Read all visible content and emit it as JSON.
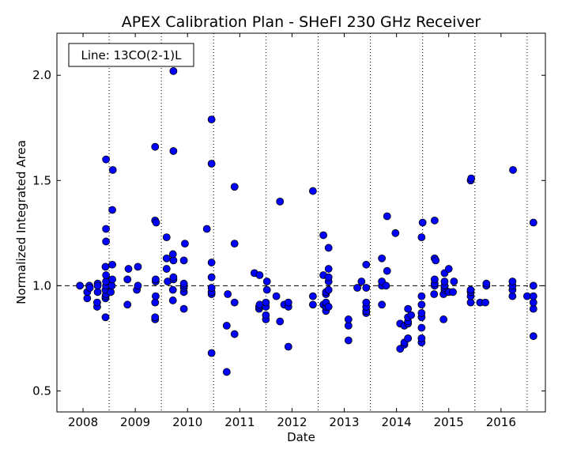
{
  "chart_data": {
    "type": "scatter",
    "title": "APEX Calibration Plan - SHeFI 230 GHz Receiver",
    "xlabel": "Date",
    "ylabel": "Normalized Integrated Area",
    "legend_text": "Line: 13CO(2-1)L",
    "legend_position": "top-left",
    "xlim": [
      2007.5,
      2016.85
    ],
    "ylim": [
      0.4,
      2.2
    ],
    "x_ticks": [
      2008,
      2009,
      2010,
      2011,
      2012,
      2013,
      2014,
      2015,
      2016
    ],
    "x_tick_labels": [
      "2008",
      "2009",
      "2010",
      "2011",
      "2012",
      "2013",
      "2014",
      "2015",
      "2016"
    ],
    "y_ticks": [
      0.5,
      1.0,
      1.5,
      2.0
    ],
    "y_tick_labels": [
      "0.5",
      "1.0",
      "1.5",
      "2.0"
    ],
    "reference_line_y": 1.0,
    "season_dividers": [
      2008.5,
      2009.5,
      2010.5,
      2011.5,
      2012.5,
      2013.5,
      2014.5,
      2015.5,
      2016.5
    ],
    "marker_color": "#0000ff",
    "grid": false,
    "points": [
      [
        2007.94,
        1.0
      ],
      [
        2008.08,
        0.94
      ],
      [
        2008.08,
        0.97
      ],
      [
        2008.12,
        1.0
      ],
      [
        2008.13,
        0.99
      ],
      [
        2008.27,
        0.9
      ],
      [
        2008.27,
        0.92
      ],
      [
        2008.28,
        0.97
      ],
      [
        2008.28,
        1.01
      ],
      [
        2008.28,
        1.0
      ],
      [
        2008.43,
        0.85
      ],
      [
        2008.43,
        0.94
      ],
      [
        2008.43,
        0.95
      ],
      [
        2008.44,
        0.96
      ],
      [
        2008.43,
        0.98
      ],
      [
        2008.44,
        1.0
      ],
      [
        2008.44,
        1.02
      ],
      [
        2008.44,
        1.05
      ],
      [
        2008.43,
        1.09
      ],
      [
        2008.44,
        1.21
      ],
      [
        2008.44,
        1.27
      ],
      [
        2008.44,
        1.6
      ],
      [
        2008.53,
        0.97
      ],
      [
        2008.55,
        1.0
      ],
      [
        2008.56,
        1.03
      ],
      [
        2008.56,
        1.1
      ],
      [
        2008.56,
        1.36
      ],
      [
        2008.57,
        1.55
      ],
      [
        2008.85,
        0.91
      ],
      [
        2008.85,
        1.03
      ],
      [
        2008.87,
        1.08
      ],
      [
        2009.03,
        0.98
      ],
      [
        2009.05,
        1.0
      ],
      [
        2009.05,
        1.09
      ],
      [
        2009.38,
        0.84
      ],
      [
        2009.38,
        0.85
      ],
      [
        2009.38,
        0.92
      ],
      [
        2009.39,
        0.95
      ],
      [
        2009.39,
        1.02
      ],
      [
        2009.39,
        1.03
      ],
      [
        2009.38,
        1.31
      ],
      [
        2009.4,
        1.3
      ],
      [
        2009.38,
        1.66
      ],
      [
        2009.6,
        1.08
      ],
      [
        2009.6,
        1.13
      ],
      [
        2009.6,
        1.23
      ],
      [
        2009.62,
        1.02
      ],
      [
        2009.72,
        0.93
      ],
      [
        2009.72,
        0.98
      ],
      [
        2009.73,
        1.03
      ],
      [
        2009.73,
        1.04
      ],
      [
        2009.73,
        1.12
      ],
      [
        2009.72,
        1.15
      ],
      [
        2009.73,
        1.64
      ],
      [
        2009.73,
        2.02
      ],
      [
        2009.93,
        0.89
      ],
      [
        2009.93,
        0.97
      ],
      [
        2009.93,
        0.99
      ],
      [
        2009.93,
        1.0
      ],
      [
        2009.93,
        1.01
      ],
      [
        2009.93,
        1.12
      ],
      [
        2009.95,
        1.2
      ],
      [
        2010.37,
        1.27
      ],
      [
        2010.46,
        0.68
      ],
      [
        2010.46,
        0.96
      ],
      [
        2010.46,
        0.97
      ],
      [
        2010.46,
        0.99
      ],
      [
        2010.46,
        1.04
      ],
      [
        2010.46,
        1.11
      ],
      [
        2010.46,
        1.58
      ],
      [
        2010.46,
        1.79
      ],
      [
        2010.75,
        0.59
      ],
      [
        2010.75,
        0.81
      ],
      [
        2010.77,
        0.96
      ],
      [
        2010.9,
        0.77
      ],
      [
        2010.9,
        0.92
      ],
      [
        2010.9,
        1.2
      ],
      [
        2010.9,
        1.47
      ],
      [
        2011.28,
        1.06
      ],
      [
        2011.37,
        0.89
      ],
      [
        2011.37,
        0.9
      ],
      [
        2011.38,
        0.91
      ],
      [
        2011.38,
        1.05
      ],
      [
        2011.5,
        0.84
      ],
      [
        2011.5,
        0.86
      ],
      [
        2011.5,
        0.9
      ],
      [
        2011.5,
        0.92
      ],
      [
        2011.52,
        0.98
      ],
      [
        2011.52,
        1.02
      ],
      [
        2011.7,
        0.95
      ],
      [
        2011.77,
        0.83
      ],
      [
        2011.77,
        1.4
      ],
      [
        2011.85,
        0.91
      ],
      [
        2011.93,
        0.71
      ],
      [
        2011.93,
        0.9
      ],
      [
        2011.93,
        0.92
      ],
      [
        2012.4,
        0.91
      ],
      [
        2012.4,
        0.95
      ],
      [
        2012.4,
        1.45
      ],
      [
        2012.6,
        0.91
      ],
      [
        2012.6,
        1.05
      ],
      [
        2012.6,
        1.24
      ],
      [
        2012.65,
        0.88
      ],
      [
        2012.65,
        0.9
      ],
      [
        2012.65,
        0.92
      ],
      [
        2012.65,
        0.96
      ],
      [
        2012.65,
        0.97
      ],
      [
        2012.7,
        0.9
      ],
      [
        2012.7,
        0.98
      ],
      [
        2012.7,
        1.02
      ],
      [
        2012.7,
        1.04
      ],
      [
        2012.7,
        1.08
      ],
      [
        2012.7,
        1.18
      ],
      [
        2013.08,
        0.74
      ],
      [
        2013.08,
        0.81
      ],
      [
        2013.08,
        0.84
      ],
      [
        2013.25,
        0.99
      ],
      [
        2013.33,
        1.02
      ],
      [
        2013.42,
        0.87
      ],
      [
        2013.42,
        0.88
      ],
      [
        2013.42,
        0.9
      ],
      [
        2013.42,
        0.92
      ],
      [
        2013.42,
        0.99
      ],
      [
        2013.42,
        1.1
      ],
      [
        2013.72,
        0.91
      ],
      [
        2013.72,
        1.0
      ],
      [
        2013.72,
        1.02
      ],
      [
        2013.72,
        1.13
      ],
      [
        2013.8,
        1.0
      ],
      [
        2013.82,
        1.07
      ],
      [
        2013.82,
        1.33
      ],
      [
        2013.98,
        1.25
      ],
      [
        2014.07,
        0.7
      ],
      [
        2014.07,
        0.82
      ],
      [
        2014.15,
        0.72
      ],
      [
        2014.15,
        0.73
      ],
      [
        2014.15,
        0.81
      ],
      [
        2014.22,
        0.75
      ],
      [
        2014.22,
        0.82
      ],
      [
        2014.22,
        0.83
      ],
      [
        2014.22,
        0.85
      ],
      [
        2014.22,
        0.89
      ],
      [
        2014.28,
        0.86
      ],
      [
        2014.48,
        0.73
      ],
      [
        2014.48,
        0.75
      ],
      [
        2014.48,
        0.8
      ],
      [
        2014.48,
        0.85
      ],
      [
        2014.48,
        0.87
      ],
      [
        2014.48,
        0.91
      ],
      [
        2014.48,
        0.95
      ],
      [
        2014.48,
        1.23
      ],
      [
        2014.5,
        1.3
      ],
      [
        2014.72,
        0.96
      ],
      [
        2014.73,
        1.0
      ],
      [
        2014.73,
        1.01
      ],
      [
        2014.73,
        1.03
      ],
      [
        2014.73,
        1.13
      ],
      [
        2014.73,
        1.31
      ],
      [
        2014.75,
        1.12
      ],
      [
        2014.9,
        0.84
      ],
      [
        2014.9,
        0.96
      ],
      [
        2014.92,
        0.98
      ],
      [
        2014.92,
        0.99
      ],
      [
        2014.92,
        1.0
      ],
      [
        2014.92,
        1.02
      ],
      [
        2014.92,
        1.06
      ],
      [
        2015.0,
        0.97
      ],
      [
        2015.0,
        1.08
      ],
      [
        2015.08,
        0.97
      ],
      [
        2015.1,
        1.02
      ],
      [
        2015.42,
        0.92
      ],
      [
        2015.42,
        0.95
      ],
      [
        2015.42,
        0.97
      ],
      [
        2015.42,
        0.98
      ],
      [
        2015.42,
        1.5
      ],
      [
        2015.43,
        1.51
      ],
      [
        2015.6,
        0.92
      ],
      [
        2015.7,
        0.92
      ],
      [
        2015.72,
        1.0
      ],
      [
        2015.72,
        1.01
      ],
      [
        2016.22,
        0.95
      ],
      [
        2016.22,
        0.98
      ],
      [
        2016.22,
        1.0
      ],
      [
        2016.22,
        1.02
      ],
      [
        2016.23,
        1.55
      ],
      [
        2016.5,
        0.95
      ],
      [
        2016.62,
        0.76
      ],
      [
        2016.62,
        0.89
      ],
      [
        2016.62,
        0.92
      ],
      [
        2016.62,
        0.95
      ],
      [
        2016.62,
        1.0
      ],
      [
        2016.62,
        1.3
      ]
    ]
  }
}
